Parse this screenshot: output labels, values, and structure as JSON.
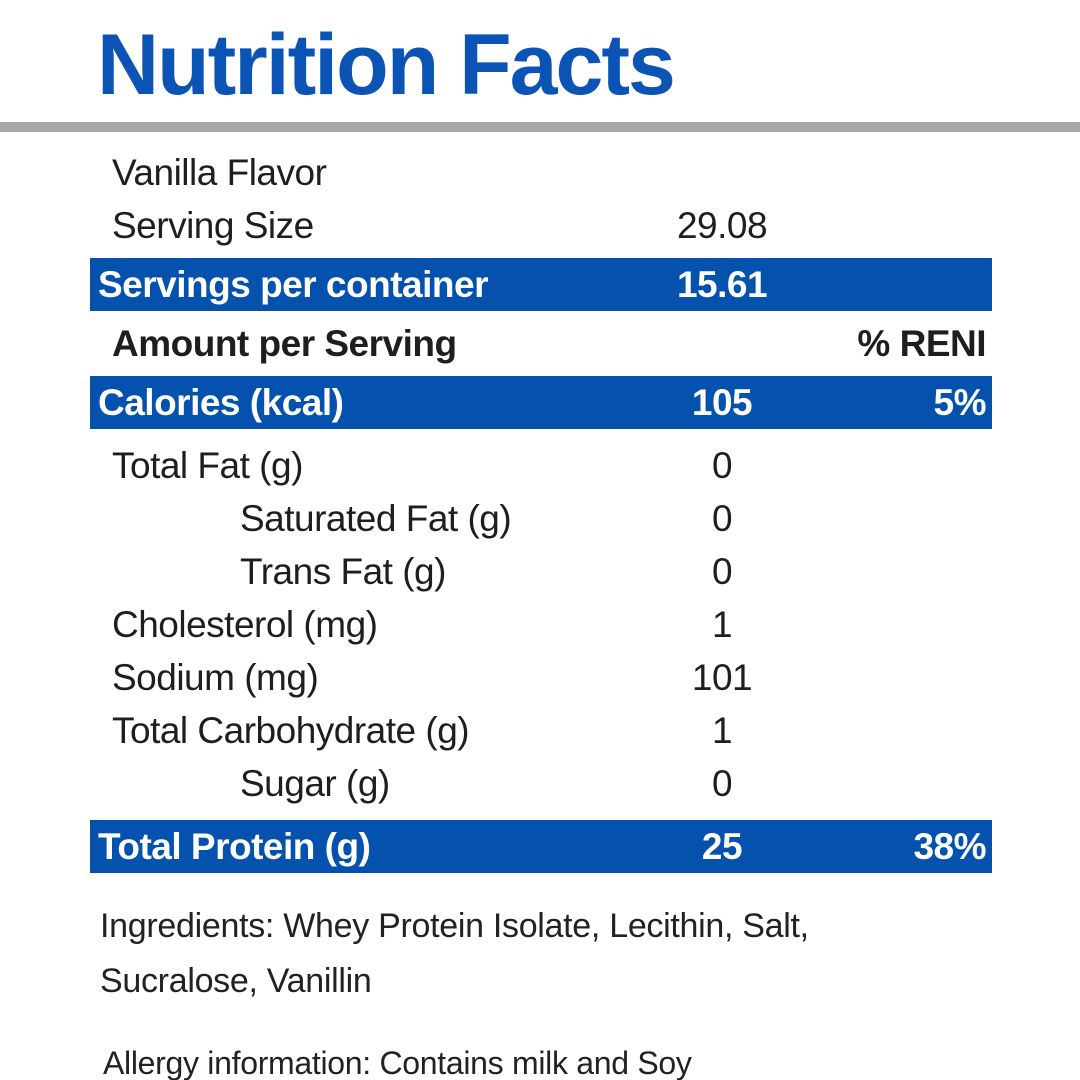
{
  "colors": {
    "title_blue": "#0b53b5",
    "bar_blue": "#0452ad",
    "divider_gray": "#a8a8a8",
    "text": "#1e1e1e"
  },
  "header": {
    "title": "Nutrition Facts"
  },
  "label": {
    "flavor": "Vanilla Flavor",
    "serving_size": {
      "label": "Serving Size",
      "value": "29.08"
    },
    "servings_per_container": {
      "label": "Servings per container",
      "value": "15.61"
    },
    "amount_header": {
      "label": "Amount per Serving",
      "percent_label": "% RENI"
    },
    "calories": {
      "label": "Calories (kcal)",
      "value": "105",
      "percent": "5%"
    },
    "rows": [
      {
        "label": "Total Fat (g)",
        "value": "0"
      },
      {
        "label": "Saturated Fat (g)",
        "value": "0"
      },
      {
        "label": "Trans Fat (g)",
        "value": "0"
      },
      {
        "label": "Cholesterol (mg)",
        "value": "1"
      },
      {
        "label": "Sodium (mg)",
        "value": "101"
      },
      {
        "label": "Total Carbohydrate (g)",
        "value": "1"
      },
      {
        "label": "Sugar (g)",
        "value": "0"
      }
    ],
    "protein": {
      "label": "Total Protein (g)",
      "value": "25",
      "percent": "38%"
    },
    "ingredients_lines": [
      "Ingredients: Whey Protein Isolate, Lecithin, Salt,",
      "Sucralose, Vanillin"
    ],
    "allergy": "Allergy information: Contains milk and Soy"
  }
}
